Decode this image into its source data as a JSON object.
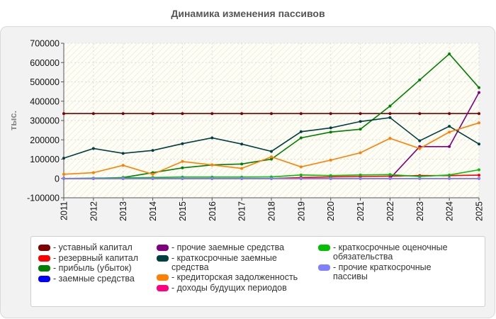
{
  "chart_data": {
    "type": "line",
    "title": "Динамика изменения пассивов",
    "ylabel": "тыс.",
    "ylim": [
      -100000,
      700000
    ],
    "yticks": [
      700000,
      600000,
      500000,
      400000,
      300000,
      200000,
      100000,
      0,
      -100000
    ],
    "ytick_labels": [
      "700000",
      "600000",
      "500000",
      "400000",
      "300000",
      "200000",
      "100000",
      "0",
      "-100000"
    ],
    "x": [
      "2011",
      "2012",
      "2013",
      "2014",
      "2015",
      "2016",
      "2017",
      "2018",
      "2019",
      "2020",
      "2021",
      "2022",
      "2023",
      "2024",
      "2025"
    ],
    "grid": true,
    "legend_position": "bottom",
    "series": [
      {
        "name": "- уставный капитал",
        "color": "#800000",
        "values": [
          336000,
          336000,
          336000,
          336000,
          336000,
          336000,
          336000,
          336000,
          336000,
          336000,
          336000,
          336000,
          336000,
          336000,
          336000
        ]
      },
      {
        "name": "- резервный капитал",
        "color": "#ff0000",
        "values": [
          0,
          0,
          0,
          0,
          0,
          0,
          0,
          0,
          5000,
          8000,
          10000,
          12000,
          15000,
          15000,
          17000
        ]
      },
      {
        "name": "- прибыль (убыток)",
        "color": "#008000",
        "values": [
          0,
          0,
          5000,
          30000,
          55000,
          70000,
          75000,
          100000,
          210000,
          240000,
          255000,
          375000,
          510000,
          645000,
          470000
        ]
      },
      {
        "name": "- заемные средства",
        "color": "#0000ff",
        "values": [
          0,
          0,
          0,
          0,
          0,
          0,
          0,
          0,
          0,
          0,
          0,
          0,
          0,
          0,
          0
        ]
      },
      {
        "name": "- прочие заемные средства",
        "color": "#800080",
        "values": [
          0,
          0,
          0,
          0,
          0,
          0,
          0,
          0,
          0,
          0,
          0,
          0,
          165000,
          165000,
          445000
        ]
      },
      {
        "name": "- краткосрочные заемные средства",
        "color": "#004040",
        "values": [
          105000,
          155000,
          130000,
          145000,
          180000,
          210000,
          178000,
          140000,
          242000,
          262000,
          295000,
          315000,
          195000,
          270000,
          178000
        ]
      },
      {
        "name": "- кредиторская задолженность",
        "color": "#ff8000",
        "values": [
          22000,
          30000,
          68000,
          22000,
          88000,
          70000,
          52000,
          112000,
          60000,
          95000,
          133000,
          208000,
          155000,
          240000,
          288000
        ]
      },
      {
        "name": "- доходы будущих периодов",
        "color": "#ff0080",
        "values": [
          0,
          0,
          0,
          0,
          0,
          0,
          0,
          0,
          0,
          0,
          0,
          0,
          0,
          0,
          0
        ]
      },
      {
        "name": "- краткосрочные оценочные обязательства",
        "color": "#00c000",
        "values": [
          0,
          2000,
          3000,
          5000,
          7000,
          7000,
          7000,
          8000,
          18000,
          15000,
          18000,
          20000,
          10000,
          18000,
          45000
        ]
      },
      {
        "name": "- прочие краткосрочные пассивы",
        "color": "#8080ff",
        "values": [
          0,
          0,
          0,
          0,
          0,
          0,
          0,
          0,
          0,
          0,
          0,
          0,
          0,
          0,
          0
        ]
      }
    ]
  }
}
